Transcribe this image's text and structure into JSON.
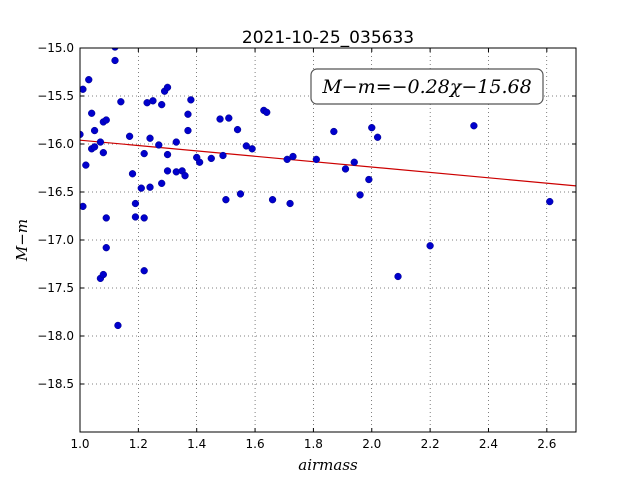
{
  "chart_data": {
    "type": "scatter",
    "title": "2021-10-25_035633",
    "xlabel": "airmass",
    "ylabel": "M−m",
    "xlim": [
      1.0,
      2.7
    ],
    "ylim": [
      -15.0,
      -19.0
    ],
    "y_inverted": true,
    "grid": true,
    "x_ticks": [
      "1.0",
      "1.2",
      "1.4",
      "1.6",
      "1.8",
      "2.0",
      "2.2",
      "2.4",
      "2.6"
    ],
    "y_ticks": [
      "−15.0",
      "−15.5",
      "−16.0",
      "−16.5",
      "−17.0",
      "−17.5",
      "−18.0",
      "−18.5"
    ],
    "annotation": "M−m=−0.28χ−15.68",
    "fit_line": {
      "slope": -0.28,
      "intercept": -15.68,
      "color": "#cc0000"
    },
    "point_color": "#0000cc",
    "series": [
      {
        "points": [
          [
            1.0,
            -15.9
          ],
          [
            1.01,
            -15.43
          ],
          [
            1.01,
            -16.65
          ],
          [
            1.02,
            -16.22
          ],
          [
            1.03,
            -15.33
          ],
          [
            1.04,
            -15.68
          ],
          [
            1.04,
            -16.05
          ],
          [
            1.05,
            -15.86
          ],
          [
            1.05,
            -16.03
          ],
          [
            1.07,
            -15.98
          ],
          [
            1.07,
            -17.4
          ],
          [
            1.08,
            -17.36
          ],
          [
            1.08,
            -15.77
          ],
          [
            1.08,
            -16.09
          ],
          [
            1.09,
            -15.75
          ],
          [
            1.09,
            -17.08
          ],
          [
            1.09,
            -16.77
          ],
          [
            1.12,
            -15.13
          ],
          [
            1.12,
            -14.99
          ],
          [
            1.13,
            -17.89
          ],
          [
            1.14,
            -15.56
          ],
          [
            1.17,
            -15.92
          ],
          [
            1.18,
            -16.31
          ],
          [
            1.19,
            -16.62
          ],
          [
            1.19,
            -16.76
          ],
          [
            1.21,
            -16.46
          ],
          [
            1.22,
            -16.1
          ],
          [
            1.22,
            -16.77
          ],
          [
            1.22,
            -17.32
          ],
          [
            1.23,
            -15.57
          ],
          [
            1.24,
            -16.45
          ],
          [
            1.24,
            -15.94
          ],
          [
            1.25,
            -15.55
          ],
          [
            1.27,
            -16.01
          ],
          [
            1.28,
            -15.59
          ],
          [
            1.28,
            -16.41
          ],
          [
            1.29,
            -15.45
          ],
          [
            1.3,
            -15.41
          ],
          [
            1.3,
            -16.11
          ],
          [
            1.3,
            -16.28
          ],
          [
            1.33,
            -15.98
          ],
          [
            1.33,
            -16.29
          ],
          [
            1.35,
            -16.28
          ],
          [
            1.36,
            -16.33
          ],
          [
            1.37,
            -15.86
          ],
          [
            1.37,
            -15.69
          ],
          [
            1.38,
            -15.54
          ],
          [
            1.4,
            -16.14
          ],
          [
            1.41,
            -16.19
          ],
          [
            1.45,
            -16.15
          ],
          [
            1.48,
            -15.74
          ],
          [
            1.49,
            -16.12
          ],
          [
            1.5,
            -16.58
          ],
          [
            1.51,
            -15.73
          ],
          [
            1.54,
            -15.85
          ],
          [
            1.55,
            -16.52
          ],
          [
            1.57,
            -16.02
          ],
          [
            1.59,
            -16.05
          ],
          [
            1.63,
            -15.65
          ],
          [
            1.64,
            -15.67
          ],
          [
            1.66,
            -16.58
          ],
          [
            1.71,
            -16.16
          ],
          [
            1.72,
            -16.62
          ],
          [
            1.73,
            -16.13
          ],
          [
            1.81,
            -16.16
          ],
          [
            1.87,
            -15.87
          ],
          [
            1.91,
            -16.26
          ],
          [
            1.94,
            -16.19
          ],
          [
            1.96,
            -16.53
          ],
          [
            1.99,
            -16.37
          ],
          [
            2.0,
            -15.83
          ],
          [
            2.02,
            -15.93
          ],
          [
            2.09,
            -17.38
          ],
          [
            2.2,
            -17.06
          ],
          [
            2.35,
            -15.81
          ],
          [
            2.61,
            -16.6
          ]
        ]
      }
    ]
  }
}
